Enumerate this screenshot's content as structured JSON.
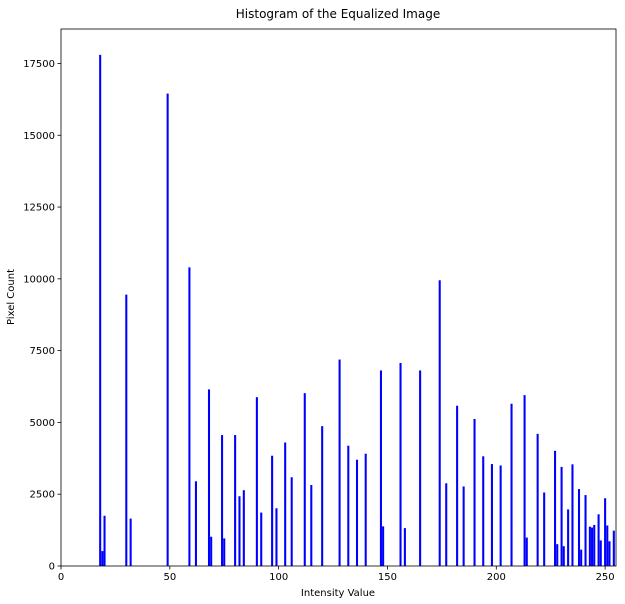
{
  "chart_data": {
    "type": "bar",
    "title": "Histogram of the Equalized Image",
    "xlabel": "Intensity Value",
    "ylabel": "Pixel Count",
    "xlim": [
      0,
      255
    ],
    "ylim": [
      0,
      18700
    ],
    "xticks": [
      0,
      50,
      100,
      150,
      200,
      250
    ],
    "yticks": [
      0,
      2500,
      5000,
      7500,
      10000,
      12500,
      15000,
      17500
    ],
    "bar_color": "#0000ff",
    "grid": false,
    "x": [
      18,
      19,
      20,
      30,
      32,
      49,
      59,
      62,
      68,
      69,
      74,
      75,
      80,
      82,
      84,
      90,
      92,
      97,
      99,
      103,
      106,
      112,
      115,
      120,
      128,
      132,
      136,
      140,
      147,
      148,
      156,
      158,
      165,
      174,
      177,
      182,
      185,
      190,
      194,
      198,
      202,
      207,
      213,
      214,
      219,
      222,
      227,
      228,
      230,
      231,
      233,
      235,
      238,
      239,
      241,
      243,
      244,
      245,
      247,
      248,
      250,
      251,
      252,
      254
    ],
    "values": [
      17800,
      520,
      1750,
      9450,
      1650,
      16450,
      10400,
      2950,
      6150,
      1020,
      4560,
      960,
      4560,
      2430,
      2640,
      5880,
      1860,
      3840,
      2010,
      4300,
      3090,
      6020,
      2820,
      4870,
      7190,
      4190,
      3700,
      3910,
      6810,
      1380,
      7070,
      1320,
      6810,
      9950,
      2880,
      5580,
      2770,
      5120,
      3820,
      3550,
      3500,
      5650,
      5950,
      990,
      4600,
      2560,
      4010,
      760,
      3450,
      690,
      1970,
      3540,
      2680,
      570,
      2470,
      1370,
      1340,
      1430,
      1800,
      890,
      2360,
      1410,
      860,
      1230
    ]
  }
}
